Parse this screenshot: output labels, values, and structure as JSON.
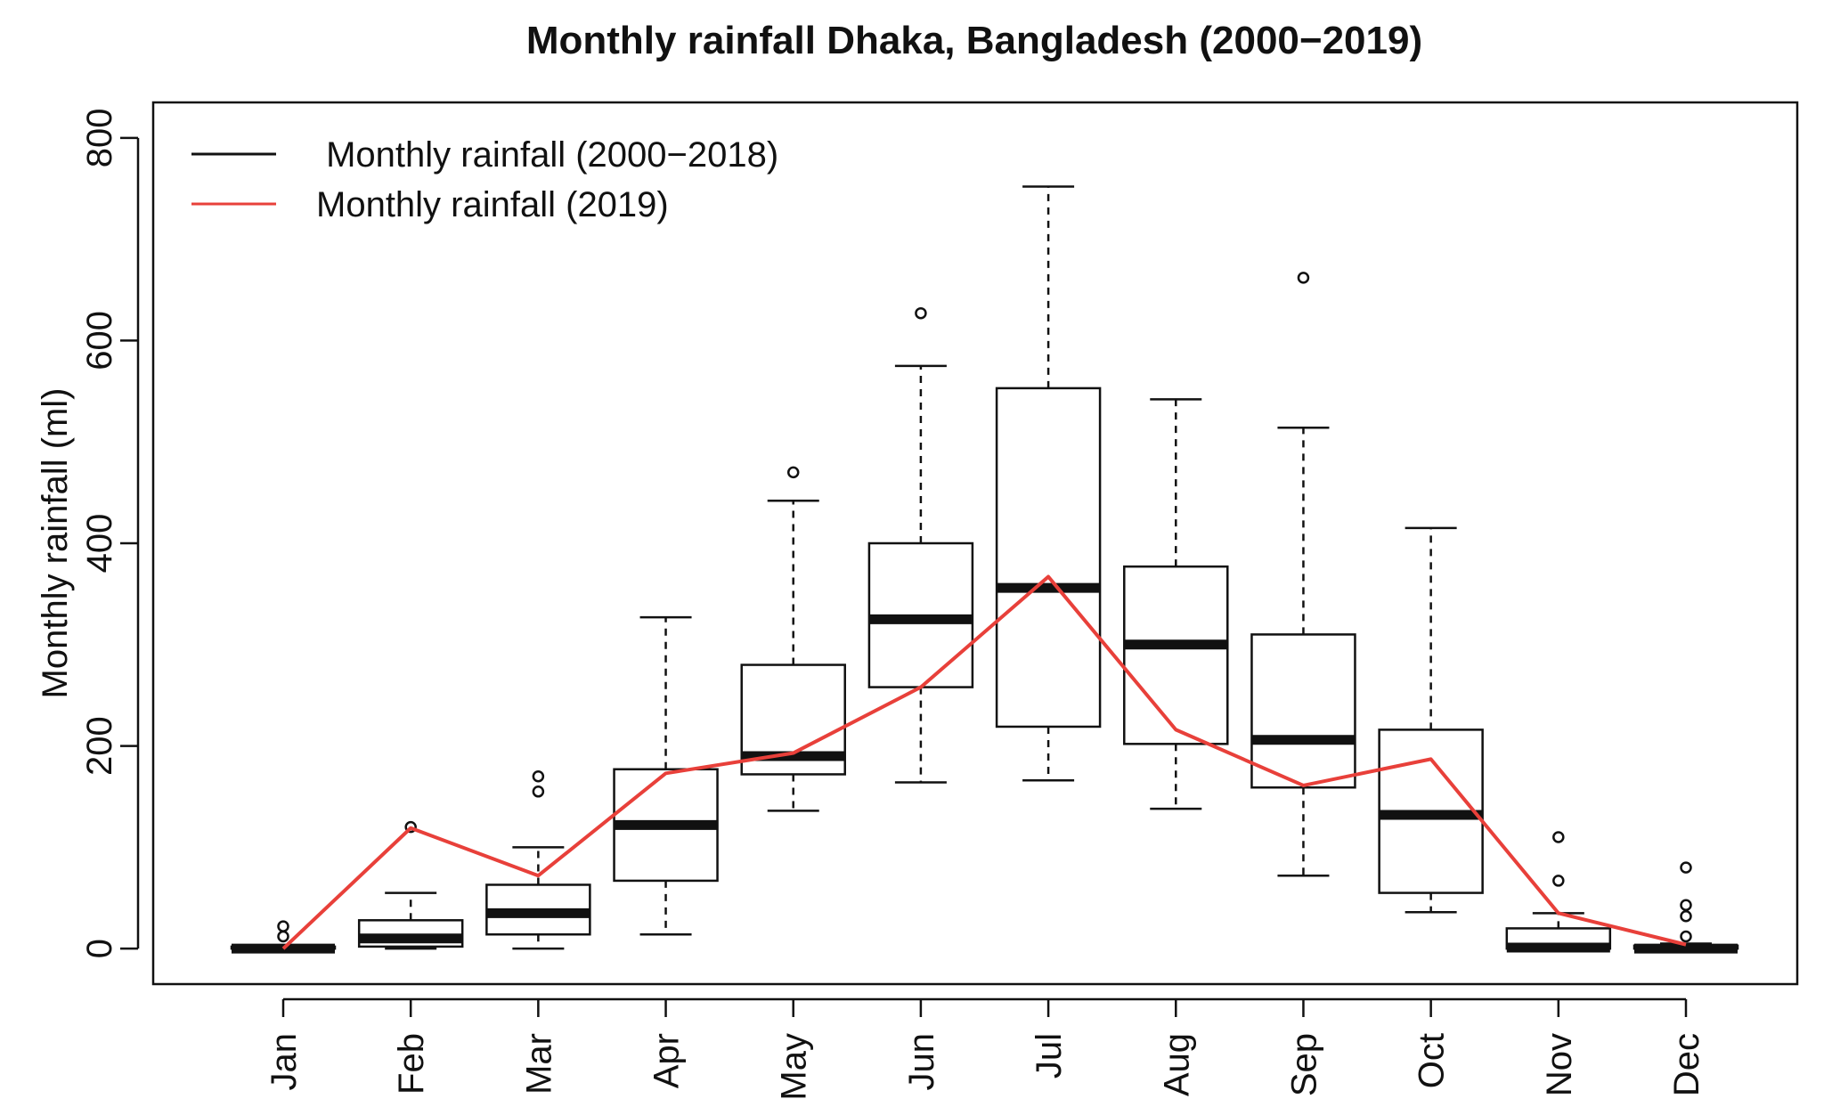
{
  "chart_data": {
    "type": "box",
    "title": "Monthly rainfall Dhaka, Bangladesh (2000−2019)",
    "xlabel": "",
    "ylabel": "Monthly rainfall (ml)",
    "ylim": [
      -35,
      835
    ],
    "yticks": [
      0,
      200,
      400,
      600,
      800
    ],
    "ytick_labels": [
      "0",
      "200",
      "400",
      "600",
      "800"
    ],
    "categories": [
      "Jan",
      "Feb",
      "Mar",
      "Apr",
      "May",
      "Jun",
      "Jul",
      "Aug",
      "Sep",
      "Oct",
      "Nov",
      "Dec"
    ],
    "grid": false,
    "legend_position": "top-left",
    "legend": [
      {
        "label": " Monthly rainfall (2000−2018)",
        "color": "#111111"
      },
      {
        "label": "Monthly rainfall (2019)",
        "color": "#e8403a"
      }
    ],
    "series": [
      {
        "name": "Monthly rainfall (2000−2018)",
        "kind": "boxplot",
        "color": "#111111",
        "boxes": [
          {
            "min": 0,
            "q1": 0,
            "median": 0,
            "q3": 2,
            "max": 3,
            "outliers": [
              12,
              22
            ]
          },
          {
            "min": 0,
            "q1": 2,
            "median": 10,
            "q3": 28,
            "max": 55,
            "outliers": [
              120
            ]
          },
          {
            "min": 0,
            "q1": 14,
            "median": 35,
            "q3": 63,
            "max": 100,
            "outliers": [
              155,
              170
            ]
          },
          {
            "min": 14,
            "q1": 67,
            "median": 122,
            "q3": 177,
            "max": 327,
            "outliers": []
          },
          {
            "min": 136,
            "q1": 172,
            "median": 190,
            "q3": 280,
            "max": 442,
            "outliers": [
              470
            ]
          },
          {
            "min": 164,
            "q1": 258,
            "median": 325,
            "q3": 400,
            "max": 575,
            "outliers": [
              627
            ]
          },
          {
            "min": 166,
            "q1": 219,
            "median": 356,
            "q3": 553,
            "max": 752,
            "outliers": []
          },
          {
            "min": 138,
            "q1": 202,
            "median": 300,
            "q3": 377,
            "max": 542,
            "outliers": []
          },
          {
            "min": 72,
            "q1": 159,
            "median": 206,
            "q3": 310,
            "max": 514,
            "outliers": [
              662
            ]
          },
          {
            "min": 36,
            "q1": 55,
            "median": 132,
            "q3": 216,
            "max": 415,
            "outliers": []
          },
          {
            "min": 0,
            "q1": 0,
            "median": 1,
            "q3": 20,
            "max": 35,
            "outliers": [
              67,
              110
            ]
          },
          {
            "min": 0,
            "q1": 0,
            "median": 0,
            "q3": 3,
            "max": 5,
            "outliers": [
              12,
              32,
              43,
              80
            ]
          }
        ]
      },
      {
        "name": "Monthly rainfall (2019)",
        "kind": "line",
        "color": "#e8403a",
        "values": [
          0,
          119,
          72,
          173,
          193,
          258,
          367,
          216,
          161,
          187,
          35,
          4
        ]
      }
    ]
  }
}
